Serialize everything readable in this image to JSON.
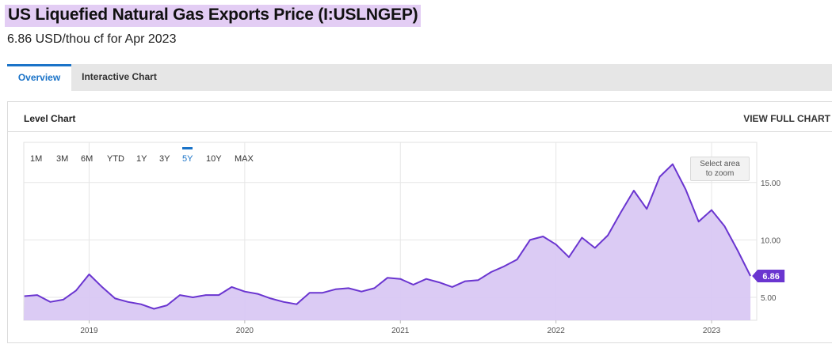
{
  "header": {
    "title": "US Liquefied Natural Gas Exports Price (I:USLNGEP)",
    "subtitle": "6.86 USD/thou cf for Apr 2023"
  },
  "tabs": [
    {
      "label": "Overview",
      "active": true
    },
    {
      "label": "Interactive Chart",
      "active": false
    }
  ],
  "panel": {
    "title": "Level Chart",
    "view_full_label": "VIEW FULL CHART"
  },
  "ranges": [
    {
      "label": "1M",
      "active": false
    },
    {
      "label": "3M",
      "active": false
    },
    {
      "label": "6M",
      "active": false
    },
    {
      "label": "YTD",
      "active": false
    },
    {
      "label": "1Y",
      "active": false
    },
    {
      "label": "3Y",
      "active": false
    },
    {
      "label": "5Y",
      "active": true
    },
    {
      "label": "10Y",
      "active": false
    },
    {
      "label": "MAX",
      "active": false
    }
  ],
  "zoom_hint": "Select area\nto zoom",
  "colors": {
    "accent": "#1a73c8",
    "line": "#6a35d0",
    "fill": "#d9c8f3",
    "title_highlight": "#e3cdf4"
  },
  "chart_data": {
    "type": "area",
    "x_start": "2018-08",
    "x_end": "2023-04",
    "xlim": [
      2018.58,
      2023.29
    ],
    "ylim": [
      3.0,
      18.5
    ],
    "yticks": [
      5,
      10,
      15
    ],
    "ytick_labels": [
      "5.00",
      "10.00",
      "15.00"
    ],
    "xticks": [
      2019,
      2020,
      2021,
      2022,
      2023
    ],
    "xtick_labels": [
      "2019",
      "2020",
      "2021",
      "2022",
      "2023"
    ],
    "grid": true,
    "last_value_label": "6.86",
    "series": [
      {
        "x": [
          "2018-08",
          "2018-09",
          "2018-10",
          "2018-11",
          "2018-12",
          "2019-01",
          "2019-02",
          "2019-03",
          "2019-04",
          "2019-05",
          "2019-06",
          "2019-07",
          "2019-08",
          "2019-09",
          "2019-10",
          "2019-11",
          "2019-12",
          "2020-01",
          "2020-02",
          "2020-03",
          "2020-04",
          "2020-05",
          "2020-06",
          "2020-07",
          "2020-08",
          "2020-09",
          "2020-10",
          "2020-11",
          "2020-12",
          "2021-01",
          "2021-02",
          "2021-03",
          "2021-04",
          "2021-05",
          "2021-06",
          "2021-07",
          "2021-08",
          "2021-09",
          "2021-10",
          "2021-11",
          "2021-12",
          "2022-01",
          "2022-02",
          "2022-03",
          "2022-04",
          "2022-05",
          "2022-06",
          "2022-07",
          "2022-08",
          "2022-09",
          "2022-10",
          "2022-11",
          "2022-12",
          "2023-01",
          "2023-02",
          "2023-03",
          "2023-04"
        ],
        "values": [
          5.1,
          5.2,
          4.6,
          4.8,
          5.6,
          7.0,
          5.9,
          4.9,
          4.6,
          4.4,
          4.0,
          4.3,
          5.2,
          5.0,
          5.2,
          5.2,
          5.9,
          5.5,
          5.3,
          4.9,
          4.6,
          4.4,
          5.4,
          5.4,
          5.7,
          5.8,
          5.5,
          5.8,
          6.7,
          6.6,
          6.1,
          6.6,
          6.3,
          5.9,
          6.4,
          6.5,
          7.2,
          7.7,
          8.3,
          10.0,
          10.3,
          9.6,
          8.5,
          10.2,
          9.3,
          10.4,
          12.4,
          14.3,
          12.7,
          15.5,
          16.6,
          14.4,
          11.6,
          12.6,
          11.2,
          9.1,
          6.86
        ]
      }
    ]
  }
}
